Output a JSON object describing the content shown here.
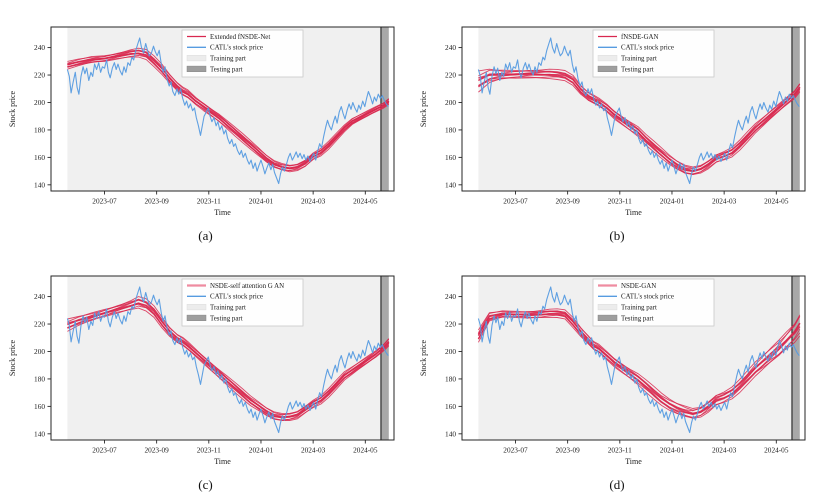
{
  "figure": {
    "background": "#ffffff",
    "description": "Four-panel comparison of stochastic models vs CATL stock price"
  },
  "colors": {
    "prediction_red": "#d8274e",
    "prediction_red_light": "#ef8ba0",
    "catl_blue": "#569be0",
    "training_fill": "#f0f0f0",
    "testing_fill": "#a8a8a8",
    "testing_edge": "#111111",
    "legend_border": "#c9c9c9",
    "legend_bg": "#ffffff",
    "spine": "#262626",
    "text": "#1a1a1a"
  },
  "chart_shared": {
    "type": "line",
    "xlabel": "Time",
    "ylabel": "Stock price",
    "x_unit": "months since 2023-06-01",
    "xlim": [
      -1.05,
      12.1
    ],
    "ylim": [
      135.5,
      255
    ],
    "yticks": [
      140,
      160,
      180,
      200,
      220,
      240
    ],
    "xtick_positions": [
      1,
      3,
      5,
      7,
      9,
      11
    ],
    "xtick_labels": [
      "2023-07",
      "2023-09",
      "2023-11",
      "2024-01",
      "2024-03",
      "2024-05"
    ],
    "grid": false,
    "legend_position": "upper center",
    "regions": {
      "training": {
        "label": "Training part",
        "t0": -0.42,
        "t1": 11.6
      },
      "testing": {
        "label": "Testing part",
        "t0": 11.6,
        "t1": 11.9
      }
    },
    "catl_series_name": "CATL's stock price",
    "catl_points": [
      [
        -0.42,
        224
      ],
      [
        -0.35,
        219
      ],
      [
        -0.28,
        207
      ],
      [
        -0.2,
        215
      ],
      [
        -0.12,
        222
      ],
      [
        -0.05,
        211
      ],
      [
        0.02,
        206
      ],
      [
        0.1,
        219
      ],
      [
        0.18,
        226
      ],
      [
        0.25,
        221
      ],
      [
        0.32,
        225
      ],
      [
        0.4,
        216
      ],
      [
        0.48,
        222
      ],
      [
        0.55,
        219
      ],
      [
        0.62,
        228
      ],
      [
        0.7,
        224
      ],
      [
        0.78,
        229
      ],
      [
        0.85,
        222
      ],
      [
        0.92,
        226
      ],
      [
        1.0,
        225
      ],
      [
        1.08,
        231
      ],
      [
        1.15,
        222
      ],
      [
        1.22,
        218
      ],
      [
        1.3,
        225
      ],
      [
        1.38,
        229
      ],
      [
        1.45,
        224
      ],
      [
        1.52,
        228
      ],
      [
        1.6,
        223
      ],
      [
        1.68,
        220
      ],
      [
        1.75,
        226
      ],
      [
        1.82,
        222
      ],
      [
        1.9,
        229
      ],
      [
        1.98,
        227
      ],
      [
        2.05,
        233
      ],
      [
        2.12,
        231
      ],
      [
        2.2,
        238
      ],
      [
        2.28,
        243
      ],
      [
        2.35,
        247
      ],
      [
        2.42,
        240
      ],
      [
        2.5,
        236
      ],
      [
        2.58,
        243
      ],
      [
        2.65,
        238
      ],
      [
        2.72,
        234
      ],
      [
        2.8,
        236
      ],
      [
        2.88,
        241
      ],
      [
        2.95,
        237
      ],
      [
        3.02,
        234
      ],
      [
        3.1,
        238
      ],
      [
        3.18,
        228
      ],
      [
        3.25,
        222
      ],
      [
        3.32,
        226
      ],
      [
        3.4,
        217
      ],
      [
        3.48,
        212
      ],
      [
        3.55,
        215
      ],
      [
        3.62,
        208
      ],
      [
        3.7,
        205
      ],
      [
        3.78,
        210
      ],
      [
        3.85,
        206
      ],
      [
        3.92,
        210
      ],
      [
        4.0,
        203
      ],
      [
        4.08,
        198
      ],
      [
        4.15,
        201
      ],
      [
        4.22,
        196
      ],
      [
        4.3,
        199
      ],
      [
        4.38,
        194
      ],
      [
        4.45,
        196
      ],
      [
        4.52,
        189
      ],
      [
        4.6,
        183
      ],
      [
        4.68,
        176
      ],
      [
        4.75,
        183
      ],
      [
        4.82,
        190
      ],
      [
        4.9,
        193
      ],
      [
        4.98,
        196
      ],
      [
        5.05,
        190
      ],
      [
        5.12,
        186
      ],
      [
        5.2,
        189
      ],
      [
        5.28,
        183
      ],
      [
        5.35,
        186
      ],
      [
        5.42,
        180
      ],
      [
        5.5,
        183
      ],
      [
        5.58,
        177
      ],
      [
        5.65,
        180
      ],
      [
        5.72,
        174
      ],
      [
        5.8,
        170
      ],
      [
        5.88,
        173
      ],
      [
        5.95,
        168
      ],
      [
        6.02,
        170
      ],
      [
        6.1,
        165
      ],
      [
        6.18,
        162
      ],
      [
        6.25,
        165
      ],
      [
        6.32,
        160
      ],
      [
        6.4,
        163
      ],
      [
        6.48,
        158
      ],
      [
        6.55,
        155
      ],
      [
        6.62,
        158
      ],
      [
        6.7,
        152
      ],
      [
        6.78,
        156
      ],
      [
        6.85,
        150
      ],
      [
        6.92,
        154
      ],
      [
        7.0,
        158
      ],
      [
        7.08,
        153
      ],
      [
        7.15,
        148
      ],
      [
        7.22,
        152
      ],
      [
        7.3,
        156
      ],
      [
        7.38,
        151
      ],
      [
        7.45,
        155
      ],
      [
        7.52,
        149
      ],
      [
        7.6,
        145
      ],
      [
        7.68,
        141
      ],
      [
        7.75,
        148
      ],
      [
        7.82,
        153
      ],
      [
        7.9,
        150
      ],
      [
        7.98,
        155
      ],
      [
        8.05,
        160
      ],
      [
        8.12,
        163
      ],
      [
        8.2,
        158
      ],
      [
        8.28,
        161
      ],
      [
        8.35,
        164
      ],
      [
        8.42,
        160
      ],
      [
        8.5,
        163
      ],
      [
        8.58,
        159
      ],
      [
        8.65,
        162
      ],
      [
        8.72,
        158
      ],
      [
        8.8,
        161
      ],
      [
        8.88,
        157
      ],
      [
        8.95,
        160
      ],
      [
        9.02,
        163
      ],
      [
        9.1,
        158
      ],
      [
        9.18,
        165
      ],
      [
        9.25,
        170
      ],
      [
        9.32,
        167
      ],
      [
        9.4,
        175
      ],
      [
        9.48,
        182
      ],
      [
        9.55,
        187
      ],
      [
        9.62,
        183
      ],
      [
        9.7,
        180
      ],
      [
        9.78,
        186
      ],
      [
        9.85,
        190
      ],
      [
        9.92,
        185
      ],
      [
        10.0,
        193
      ],
      [
        10.08,
        197
      ],
      [
        10.15,
        192
      ],
      [
        10.22,
        188
      ],
      [
        10.3,
        194
      ],
      [
        10.38,
        199
      ],
      [
        10.45,
        195
      ],
      [
        10.52,
        200
      ],
      [
        10.6,
        196
      ],
      [
        10.68,
        193
      ],
      [
        10.75,
        198
      ],
      [
        10.82,
        195
      ],
      [
        10.9,
        201
      ],
      [
        10.98,
        197
      ],
      [
        11.05,
        203
      ],
      [
        11.12,
        208
      ],
      [
        11.2,
        204
      ],
      [
        11.28,
        199
      ],
      [
        11.35,
        204
      ],
      [
        11.42,
        201
      ],
      [
        11.5,
        206
      ],
      [
        11.58,
        203
      ],
      [
        11.65,
        205
      ],
      [
        11.72,
        202
      ],
      [
        11.8,
        199
      ],
      [
        11.88,
        197
      ]
    ],
    "bundle_t": [
      -0.42,
      0,
      0.5,
      1,
      1.5,
      2,
      2.3,
      2.6,
      2.9,
      3.2,
      3.5,
      3.8,
      4,
      4.2,
      4.5,
      4.8,
      5.1,
      5.4,
      5.7,
      6,
      6.3,
      6.6,
      6.9,
      7.2,
      7.5,
      7.8,
      8.1,
      8.4,
      8.7,
      9,
      9.3,
      9.6,
      9.9,
      10.2,
      10.5,
      10.8,
      11.1,
      11.4,
      11.7,
      11.9
    ],
    "legend_static_entries": [
      "Training part",
      "Testing part"
    ]
  },
  "chart_data": [
    {
      "type": "line",
      "caption": "(a)",
      "model_label": "Extended fNSDE-Net",
      "legend": [
        "Extended fNSDE-Net",
        "CATL's stock price",
        "Training part",
        "Testing part"
      ],
      "legend_line_style": "crimson-thin",
      "n_lines": 9,
      "bundle_center": [
        227,
        229,
        231,
        232,
        234,
        236,
        236.5,
        235,
        230,
        224,
        217,
        211,
        208,
        206,
        201,
        197,
        193,
        189,
        184,
        179,
        174,
        169,
        164,
        159,
        155,
        153,
        152,
        153,
        156,
        161,
        164,
        169,
        175,
        181,
        186,
        189,
        192,
        195,
        198,
        201
      ],
      "bundle_spread": [
        2.2,
        2.2,
        2.2,
        2.2,
        2.2,
        2.4,
        2.6,
        2.8,
        3,
        3,
        3,
        3,
        3,
        3,
        2.8,
        2.8,
        2.6,
        2.6,
        2.5,
        2.5,
        2.5,
        2.5,
        2.5,
        2.5,
        2.5,
        2.5,
        2.5,
        2.4,
        2.3,
        2.2,
        2.2,
        2.2,
        2.1,
        2,
        2,
        2,
        2,
        2,
        2,
        2.2
      ]
    },
    {
      "type": "line",
      "caption": "(b)",
      "model_label": "fNSDE-GAN",
      "legend": [
        "fNSDE-GAN",
        "CATL's stock price",
        "Training part",
        "Testing part"
      ],
      "legend_line_style": "crimson-thin",
      "n_lines": 9,
      "bundle_center": [
        215,
        219,
        220,
        220.5,
        221,
        221,
        221,
        220.5,
        219.5,
        216,
        209,
        204,
        202,
        200,
        196,
        191,
        187,
        183,
        179,
        173,
        168,
        163,
        158,
        154,
        151,
        150,
        151.5,
        155,
        159.5,
        161.5,
        164,
        169,
        175,
        181,
        186,
        191,
        196,
        201,
        206,
        211
      ],
      "bundle_spread": [
        6,
        4.5,
        3.2,
        3,
        2.8,
        2.8,
        2.8,
        2.8,
        2.8,
        3,
        3,
        3,
        3,
        3,
        3,
        3,
        3,
        3,
        3,
        3,
        3,
        3,
        3,
        3,
        3,
        3,
        3,
        3,
        2.8,
        2.8,
        2.8,
        2.8,
        2.8,
        2.8,
        2.8,
        2.8,
        2.8,
        2.8,
        3,
        3.2
      ]
    },
    {
      "type": "line",
      "caption": "(c)",
      "model_label": "NSDE-self attention G AN",
      "legend": [
        "NSDE-self attention G AN",
        "CATL's stock price",
        "Training part",
        "Testing part"
      ],
      "legend_line_style": "pink-thick",
      "n_lines": 9,
      "bundle_center": [
        219,
        222,
        225,
        228,
        231,
        234,
        236,
        234,
        229,
        221,
        214,
        209,
        207,
        204,
        199,
        194,
        189,
        184,
        179,
        174,
        169,
        164,
        160,
        156,
        153,
        152,
        152.5,
        154,
        158,
        162,
        165,
        170,
        176,
        182,
        186,
        190,
        194,
        198,
        203,
        207
      ],
      "bundle_spread": [
        3.5,
        3,
        2.8,
        2.8,
        2.8,
        3,
        3.4,
        3.4,
        3.2,
        3.2,
        3,
        3,
        3,
        3,
        2.8,
        2.8,
        2.8,
        2.8,
        2.8,
        2.8,
        2.8,
        2.8,
        2.8,
        2.8,
        2.8,
        2.8,
        2.8,
        2.8,
        2.5,
        2.5,
        2.5,
        2.5,
        2.5,
        2.5,
        2.5,
        2.5,
        2.5,
        2.5,
        2.5,
        2.8
      ]
    },
    {
      "type": "line",
      "caption": "(d)",
      "model_label": "NSDE-GAN",
      "legend": [
        "NSDE-GAN",
        "CATL's stock price",
        "Training part",
        "Testing part"
      ],
      "legend_line_style": "pink-thick",
      "n_lines": 9,
      "bundle_center": [
        211,
        225,
        227,
        227,
        227,
        227.5,
        228,
        228,
        227,
        221,
        214,
        208,
        204,
        202,
        197,
        192,
        188,
        184,
        180,
        175,
        170,
        165,
        161,
        158,
        156,
        154.5,
        156,
        160,
        165,
        167,
        170,
        175,
        181,
        187,
        192,
        197,
        202,
        208,
        214,
        220
      ],
      "bundle_spread": [
        3.5,
        2.8,
        2.4,
        2.4,
        2.4,
        2.4,
        2.4,
        2.4,
        2.5,
        3,
        3,
        3,
        3,
        3,
        3.2,
        3.2,
        3.2,
        3.2,
        3.4,
        3.5,
        3.5,
        3.5,
        3.6,
        3.8,
        3.8,
        3.8,
        3.8,
        3.8,
        3.6,
        3.5,
        3.5,
        3.6,
        3.8,
        4.2,
        4.6,
        5.2,
        5.8,
        6.5,
        7.2,
        8
      ]
    }
  ]
}
